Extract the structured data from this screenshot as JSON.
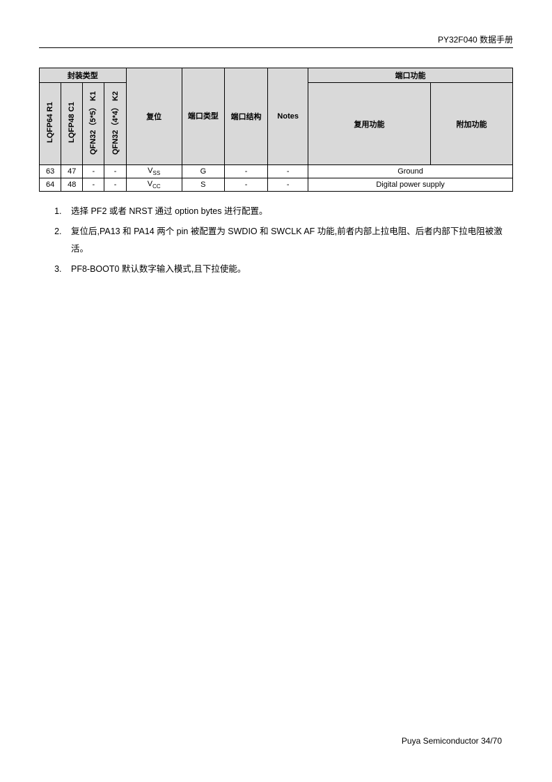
{
  "header": {
    "title": "PY32F040 数据手册"
  },
  "table": {
    "group_headers": {
      "package_type": "封装类型",
      "port_function": "端口功能"
    },
    "col_headers": {
      "pkg1": "LQFP64 R1",
      "pkg2": "LQFP48 C1",
      "pkg3": "QFN32（5*5） K1",
      "pkg4": "QFN32（4*4） K2",
      "reset": "复位",
      "port_type": "端口类型",
      "port_struct": "端口结构",
      "notes": "Notes",
      "alt_func": "复用功能",
      "add_func": "附加功能"
    },
    "rows": [
      {
        "pkg1": "63",
        "pkg2": "47",
        "pkg3": "-",
        "pkg4": "-",
        "reset_base": "V",
        "reset_sub": "SS",
        "port_type": "G",
        "port_struct": "-",
        "notes": "-",
        "func": "Ground"
      },
      {
        "pkg1": "64",
        "pkg2": "48",
        "pkg3": "-",
        "pkg4": "-",
        "reset_base": "V",
        "reset_sub": "CC",
        "port_type": "S",
        "port_struct": "-",
        "notes": "-",
        "func": "Digital power supply"
      }
    ]
  },
  "notes": {
    "n1": "选择 PF2 或者 NRST 通过 option bytes 进行配置。",
    "n2": "复位后,PA13 和 PA14 两个 pin 被配置为 SWDIO 和 SWCLK AF 功能,前者内部上拉电阻、后者内部下拉电阻被激活。",
    "n3": "PF8-BOOT0 默认数字输入模式,且下拉使能。"
  },
  "footer": {
    "company": "Puya Semiconductor",
    "page": "34/70"
  },
  "colors": {
    "header_bg": "#d9d9d9",
    "border": "#000000",
    "text": "#000000",
    "background": "#ffffff"
  }
}
